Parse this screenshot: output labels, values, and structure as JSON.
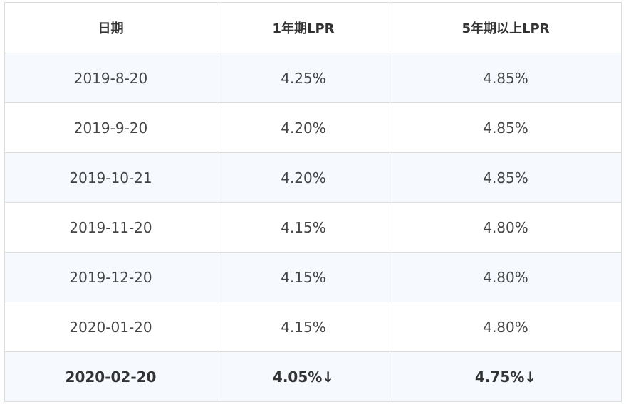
{
  "table": {
    "headers": [
      "日期",
      "1年期LPR",
      "5年期以上LPR"
    ],
    "rows": [
      [
        "2019-8-20",
        "4.25%",
        "4.85%"
      ],
      [
        "2019-9-20",
        "4.20%",
        "4.85%"
      ],
      [
        "2019-10-21",
        "4.20%",
        "4.85%"
      ],
      [
        "2019-11-20",
        "4.15%",
        "4.80%"
      ],
      [
        "2019-12-20",
        "4.15%",
        "4.80%"
      ],
      [
        "2020-01-20",
        "4.15%",
        "4.80%"
      ],
      [
        "2020-02-20",
        "4.05%↓",
        "4.75%↓"
      ]
    ]
  }
}
